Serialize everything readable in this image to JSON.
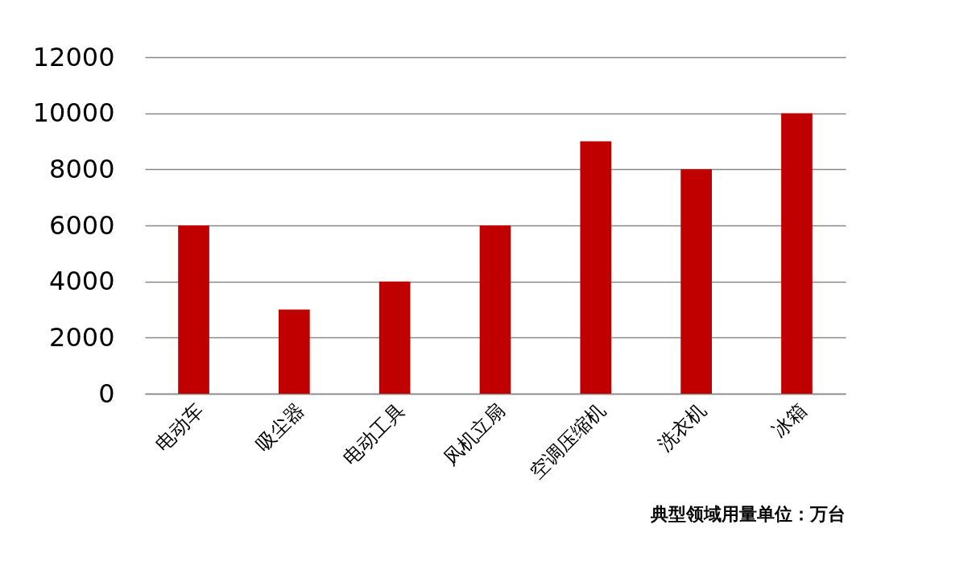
{
  "chart_data": {
    "type": "bar",
    "categories": [
      "电动车",
      "吸尘器",
      "电动工具",
      "风机立扇",
      "空调压缩机",
      "洗衣机",
      "冰箱"
    ],
    "values": [
      6000,
      3000,
      4000,
      6000,
      9000,
      8000,
      10000
    ],
    "color": "#c00000",
    "ylim": [
      0,
      12000
    ],
    "yticks": [
      0,
      2000,
      4000,
      6000,
      8000,
      10000,
      12000
    ],
    "grid": "y",
    "annotations": [
      "典型领域用量单位：万台"
    ]
  }
}
